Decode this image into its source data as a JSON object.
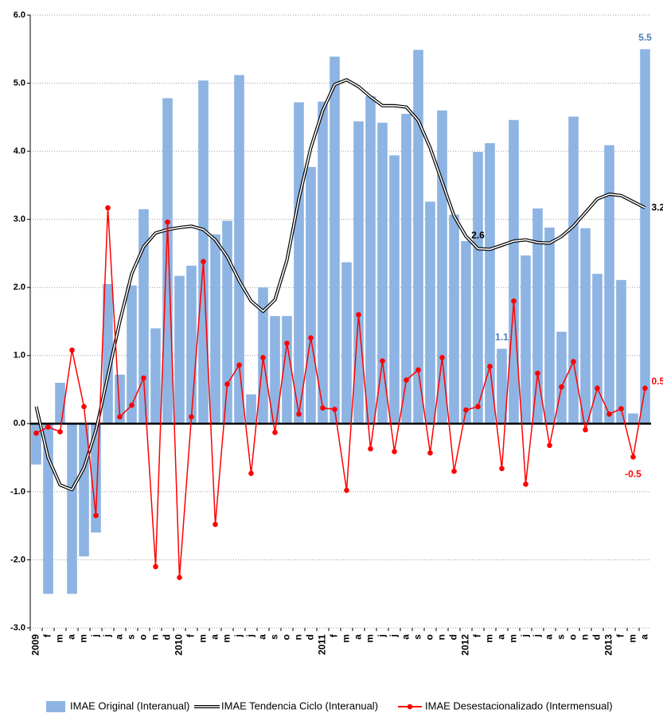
{
  "chart_data": {
    "type": "bar-line",
    "categories": [
      "2009",
      "f",
      "m",
      "a",
      "m",
      "j",
      "j",
      "a",
      "s",
      "o",
      "n",
      "d",
      "2010",
      "f",
      "m",
      "a",
      "m",
      "j",
      "j",
      "a",
      "s",
      "o",
      "n",
      "d",
      "2011",
      "f",
      "m",
      "a",
      "m",
      "j",
      "j",
      "a",
      "s",
      "o",
      "n",
      "d",
      "2012",
      "f",
      "m",
      "a",
      "m",
      "j",
      "j",
      "a",
      "s",
      "o",
      "n",
      "d",
      "2013",
      "f",
      "m",
      "a"
    ],
    "series": [
      {
        "name": "IMAE Original (Interanual)",
        "kind": "bar",
        "color": "#8db4e2",
        "values": [
          -0.6,
          -2.5,
          0.6,
          -2.5,
          -1.95,
          -1.6,
          2.05,
          0.72,
          2.03,
          3.15,
          1.4,
          4.78,
          2.17,
          2.32,
          5.04,
          2.78,
          2.98,
          5.12,
          0.43,
          2.0,
          1.58,
          1.58,
          4.72,
          3.77,
          4.73,
          5.39,
          2.37,
          4.44,
          4.81,
          4.42,
          3.94,
          4.55,
          5.49,
          3.26,
          4.6,
          3.07,
          2.68,
          3.99,
          4.12,
          1.1,
          4.46,
          2.47,
          3.16,
          2.88,
          1.35,
          4.51,
          2.87,
          2.2,
          4.09,
          2.11,
          0.15,
          5.5
        ],
        "value_labels": [
          null,
          null,
          null,
          null,
          null,
          null,
          null,
          null,
          null,
          null,
          null,
          null,
          null,
          null,
          null,
          null,
          null,
          null,
          null,
          null,
          null,
          null,
          null,
          null,
          null,
          null,
          null,
          null,
          null,
          null,
          null,
          null,
          null,
          null,
          null,
          null,
          null,
          null,
          null,
          "1.1",
          null,
          null,
          null,
          null,
          null,
          null,
          null,
          null,
          null,
          null,
          null,
          "5.5"
        ]
      },
      {
        "name": "IMAE Tendencia Ciclo (Interanual)",
        "kind": "double-line",
        "color": "#000000",
        "values": [
          0.25,
          -0.5,
          -0.9,
          -0.97,
          -0.65,
          -0.1,
          0.7,
          1.5,
          2.2,
          2.6,
          2.8,
          2.85,
          2.88,
          2.9,
          2.85,
          2.7,
          2.45,
          2.1,
          1.8,
          1.65,
          1.82,
          2.4,
          3.3,
          4.05,
          4.6,
          4.98,
          5.05,
          4.95,
          4.8,
          4.67,
          4.67,
          4.65,
          4.45,
          4.05,
          3.55,
          3.05,
          2.75,
          2.57,
          2.56,
          2.62,
          2.68,
          2.7,
          2.66,
          2.65,
          2.75,
          2.9,
          3.1,
          3.3,
          3.37,
          3.35,
          3.26,
          3.17
        ],
        "value_labels": [
          null,
          null,
          null,
          null,
          null,
          null,
          null,
          null,
          null,
          null,
          null,
          null,
          null,
          null,
          null,
          null,
          null,
          null,
          null,
          null,
          null,
          null,
          null,
          null,
          null,
          null,
          null,
          null,
          null,
          null,
          null,
          null,
          null,
          null,
          null,
          null,
          null,
          "2.6",
          null,
          null,
          null,
          null,
          null,
          null,
          null,
          null,
          null,
          null,
          null,
          null,
          null,
          "3.2"
        ]
      },
      {
        "name": "IMAE Desestacionalizado (Intermensual)",
        "kind": "line-marker",
        "color": "#ff0000",
        "values": [
          -0.14,
          -0.05,
          -0.12,
          1.08,
          0.25,
          -1.35,
          3.17,
          0.1,
          0.27,
          0.67,
          -2.1,
          2.96,
          -2.26,
          0.1,
          2.38,
          -1.48,
          0.58,
          0.86,
          -0.73,
          0.97,
          -0.13,
          1.18,
          0.14,
          1.26,
          0.23,
          0.21,
          -0.98,
          1.6,
          -0.37,
          0.92,
          -0.41,
          0.64,
          0.79,
          -0.43,
          0.97,
          -0.7,
          0.2,
          0.25,
          0.84,
          -0.66,
          1.8,
          -0.89,
          0.74,
          -0.32,
          0.54,
          0.91,
          -0.09,
          0.52,
          0.14,
          0.22,
          -0.49,
          0.52
        ],
        "value_labels": [
          null,
          null,
          null,
          null,
          null,
          null,
          null,
          null,
          null,
          null,
          null,
          null,
          null,
          null,
          null,
          null,
          null,
          null,
          null,
          null,
          null,
          null,
          null,
          null,
          null,
          null,
          null,
          null,
          null,
          null,
          null,
          null,
          null,
          null,
          null,
          null,
          null,
          null,
          null,
          null,
          null,
          null,
          null,
          null,
          null,
          null,
          null,
          null,
          null,
          null,
          "-0.5",
          "0.5"
        ]
      }
    ],
    "ylim": [
      -3,
      6
    ],
    "yticks": [
      {
        "value": -3,
        "label": "-3.0"
      },
      {
        "value": -2,
        "label": "-2.0"
      },
      {
        "value": -1,
        "label": "-1.0"
      },
      {
        "value": 0,
        "label": "0.0"
      },
      {
        "value": 1,
        "label": "1.0"
      },
      {
        "value": 2,
        "label": "2.0"
      },
      {
        "value": 3,
        "label": "3.0"
      },
      {
        "value": 4,
        "label": "4.0"
      },
      {
        "value": 5,
        "label": "5.0"
      },
      {
        "value": 6,
        "label": "6.0"
      }
    ],
    "grid": true,
    "legend": "bottom"
  }
}
